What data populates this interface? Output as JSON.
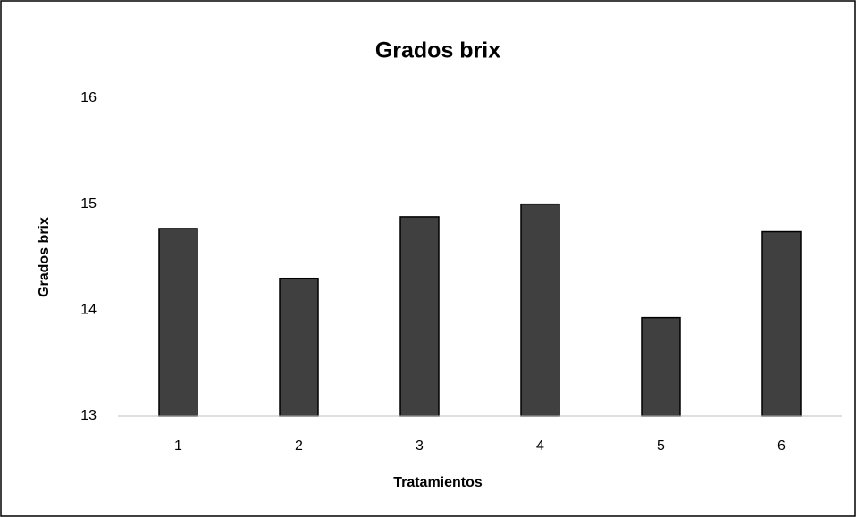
{
  "chart_data": {
    "type": "bar",
    "title": "Grados brix",
    "x_label": "Tratamientos",
    "y_label": "Grados brix",
    "categories": [
      "1",
      "2",
      "3",
      "4",
      "5",
      "6"
    ],
    "values": [
      14.77,
      14.3,
      14.88,
      15.0,
      13.93,
      14.74
    ],
    "color": "#404040",
    "ylim": [
      13,
      16
    ],
    "yticks": [
      13,
      14,
      15,
      16
    ],
    "grid": false
  }
}
